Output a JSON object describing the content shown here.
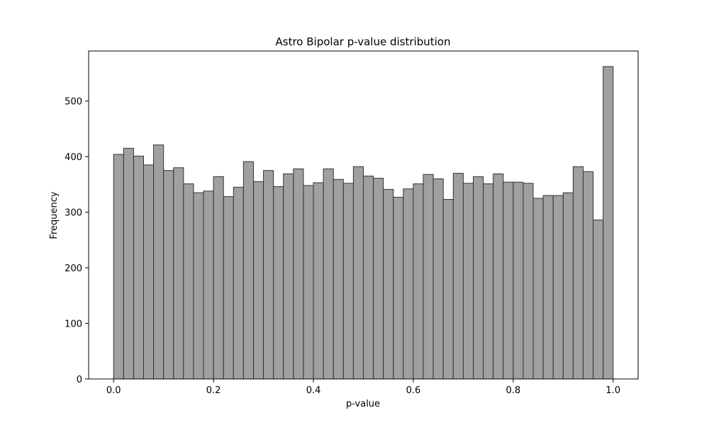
{
  "chart_data": {
    "type": "bar",
    "title": "Astro Bipolar p-value distribution",
    "xlabel": "p-value",
    "ylabel": "Frequency",
    "bin_edges_start": 0.0,
    "bin_width": 0.02,
    "values": [
      404,
      415,
      401,
      385,
      421,
      375,
      380,
      351,
      335,
      338,
      364,
      328,
      345,
      391,
      355,
      375,
      346,
      369,
      378,
      348,
      353,
      378,
      359,
      352,
      382,
      365,
      361,
      341,
      327,
      342,
      351,
      368,
      360,
      323,
      370,
      352,
      364,
      351,
      369,
      354,
      354,
      352,
      325,
      330,
      330,
      335,
      382,
      373,
      286,
      562
    ],
    "xlim": [
      -0.05,
      1.05
    ],
    "ylim": [
      0,
      590
    ],
    "xticks": [
      0.0,
      0.2,
      0.4,
      0.6,
      0.8,
      1.0
    ],
    "xtick_labels": [
      "0.0",
      "0.2",
      "0.4",
      "0.6",
      "0.8",
      "1.0"
    ],
    "yticks": [
      0,
      100,
      200,
      300,
      400,
      500
    ],
    "ytick_labels": [
      "0",
      "100",
      "200",
      "300",
      "400",
      "500"
    ],
    "bar_color": "#a0a0a0",
    "edge_color": "#333333",
    "grid": false,
    "legend": "none"
  }
}
